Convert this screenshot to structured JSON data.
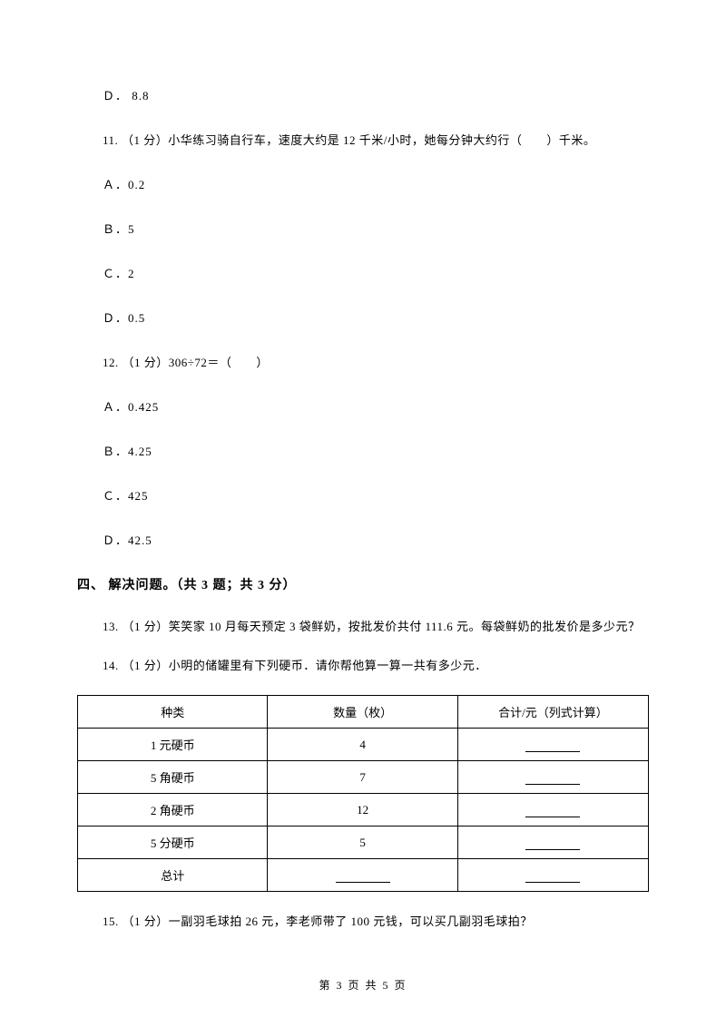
{
  "q10_option_d_prefix": "Ｄ．",
  "q10_option_d_value": "8.8",
  "q11": {
    "prefix": "11. （1 分）",
    "text": "小华练习骑自行车，速度大约是 12 千米/小时，她每分钟大约行（　　）千米。",
    "options": {
      "a_prefix": "Ａ．",
      "a_value": "0.2",
      "b_prefix": "Ｂ．",
      "b_value": "5",
      "c_prefix": "Ｃ．",
      "c_value": "2",
      "d_prefix": "Ｄ．",
      "d_value": "0.5"
    }
  },
  "q12": {
    "prefix": "12. （1 分）",
    "text": "306÷72＝（　　）",
    "options": {
      "a_prefix": "Ａ．",
      "a_value": "0.425",
      "b_prefix": "Ｂ．",
      "b_value": "4.25",
      "c_prefix": "Ｃ．",
      "c_value": "425",
      "d_prefix": "Ｄ．",
      "d_value": "42.5"
    }
  },
  "section4_heading": "四、 解决问题。（共 3 题；共 3 分）",
  "q13": {
    "prefix": "13. （1 分）",
    "text": "笑笑家 10 月每天预定 3 袋鲜奶，按批发价共付 111.6 元。每袋鲜奶的批发价是多少元？"
  },
  "q14": {
    "prefix": "14. （1 分）",
    "text": "小明的储罐里有下列硬币．请你帮他算一算一共有多少元．",
    "table": {
      "headers": {
        "c1": "种类",
        "c2": "数量（枚）",
        "c3": "合计/元（列式计算）"
      },
      "rows": [
        {
          "c1": "1 元硬币",
          "c2": "4"
        },
        {
          "c1": "5 角硬币",
          "c2": "7"
        },
        {
          "c1": "2 角硬币",
          "c2": "12"
        },
        {
          "c1": "5 分硬币",
          "c2": "5"
        }
      ],
      "total_label": "总计"
    }
  },
  "q15": {
    "prefix": "15. （1 分）",
    "text": "一副羽毛球拍 26 元，李老师带了 100 元钱，可以买几副羽毛球拍？"
  },
  "footer": "第 3 页 共 5 页"
}
